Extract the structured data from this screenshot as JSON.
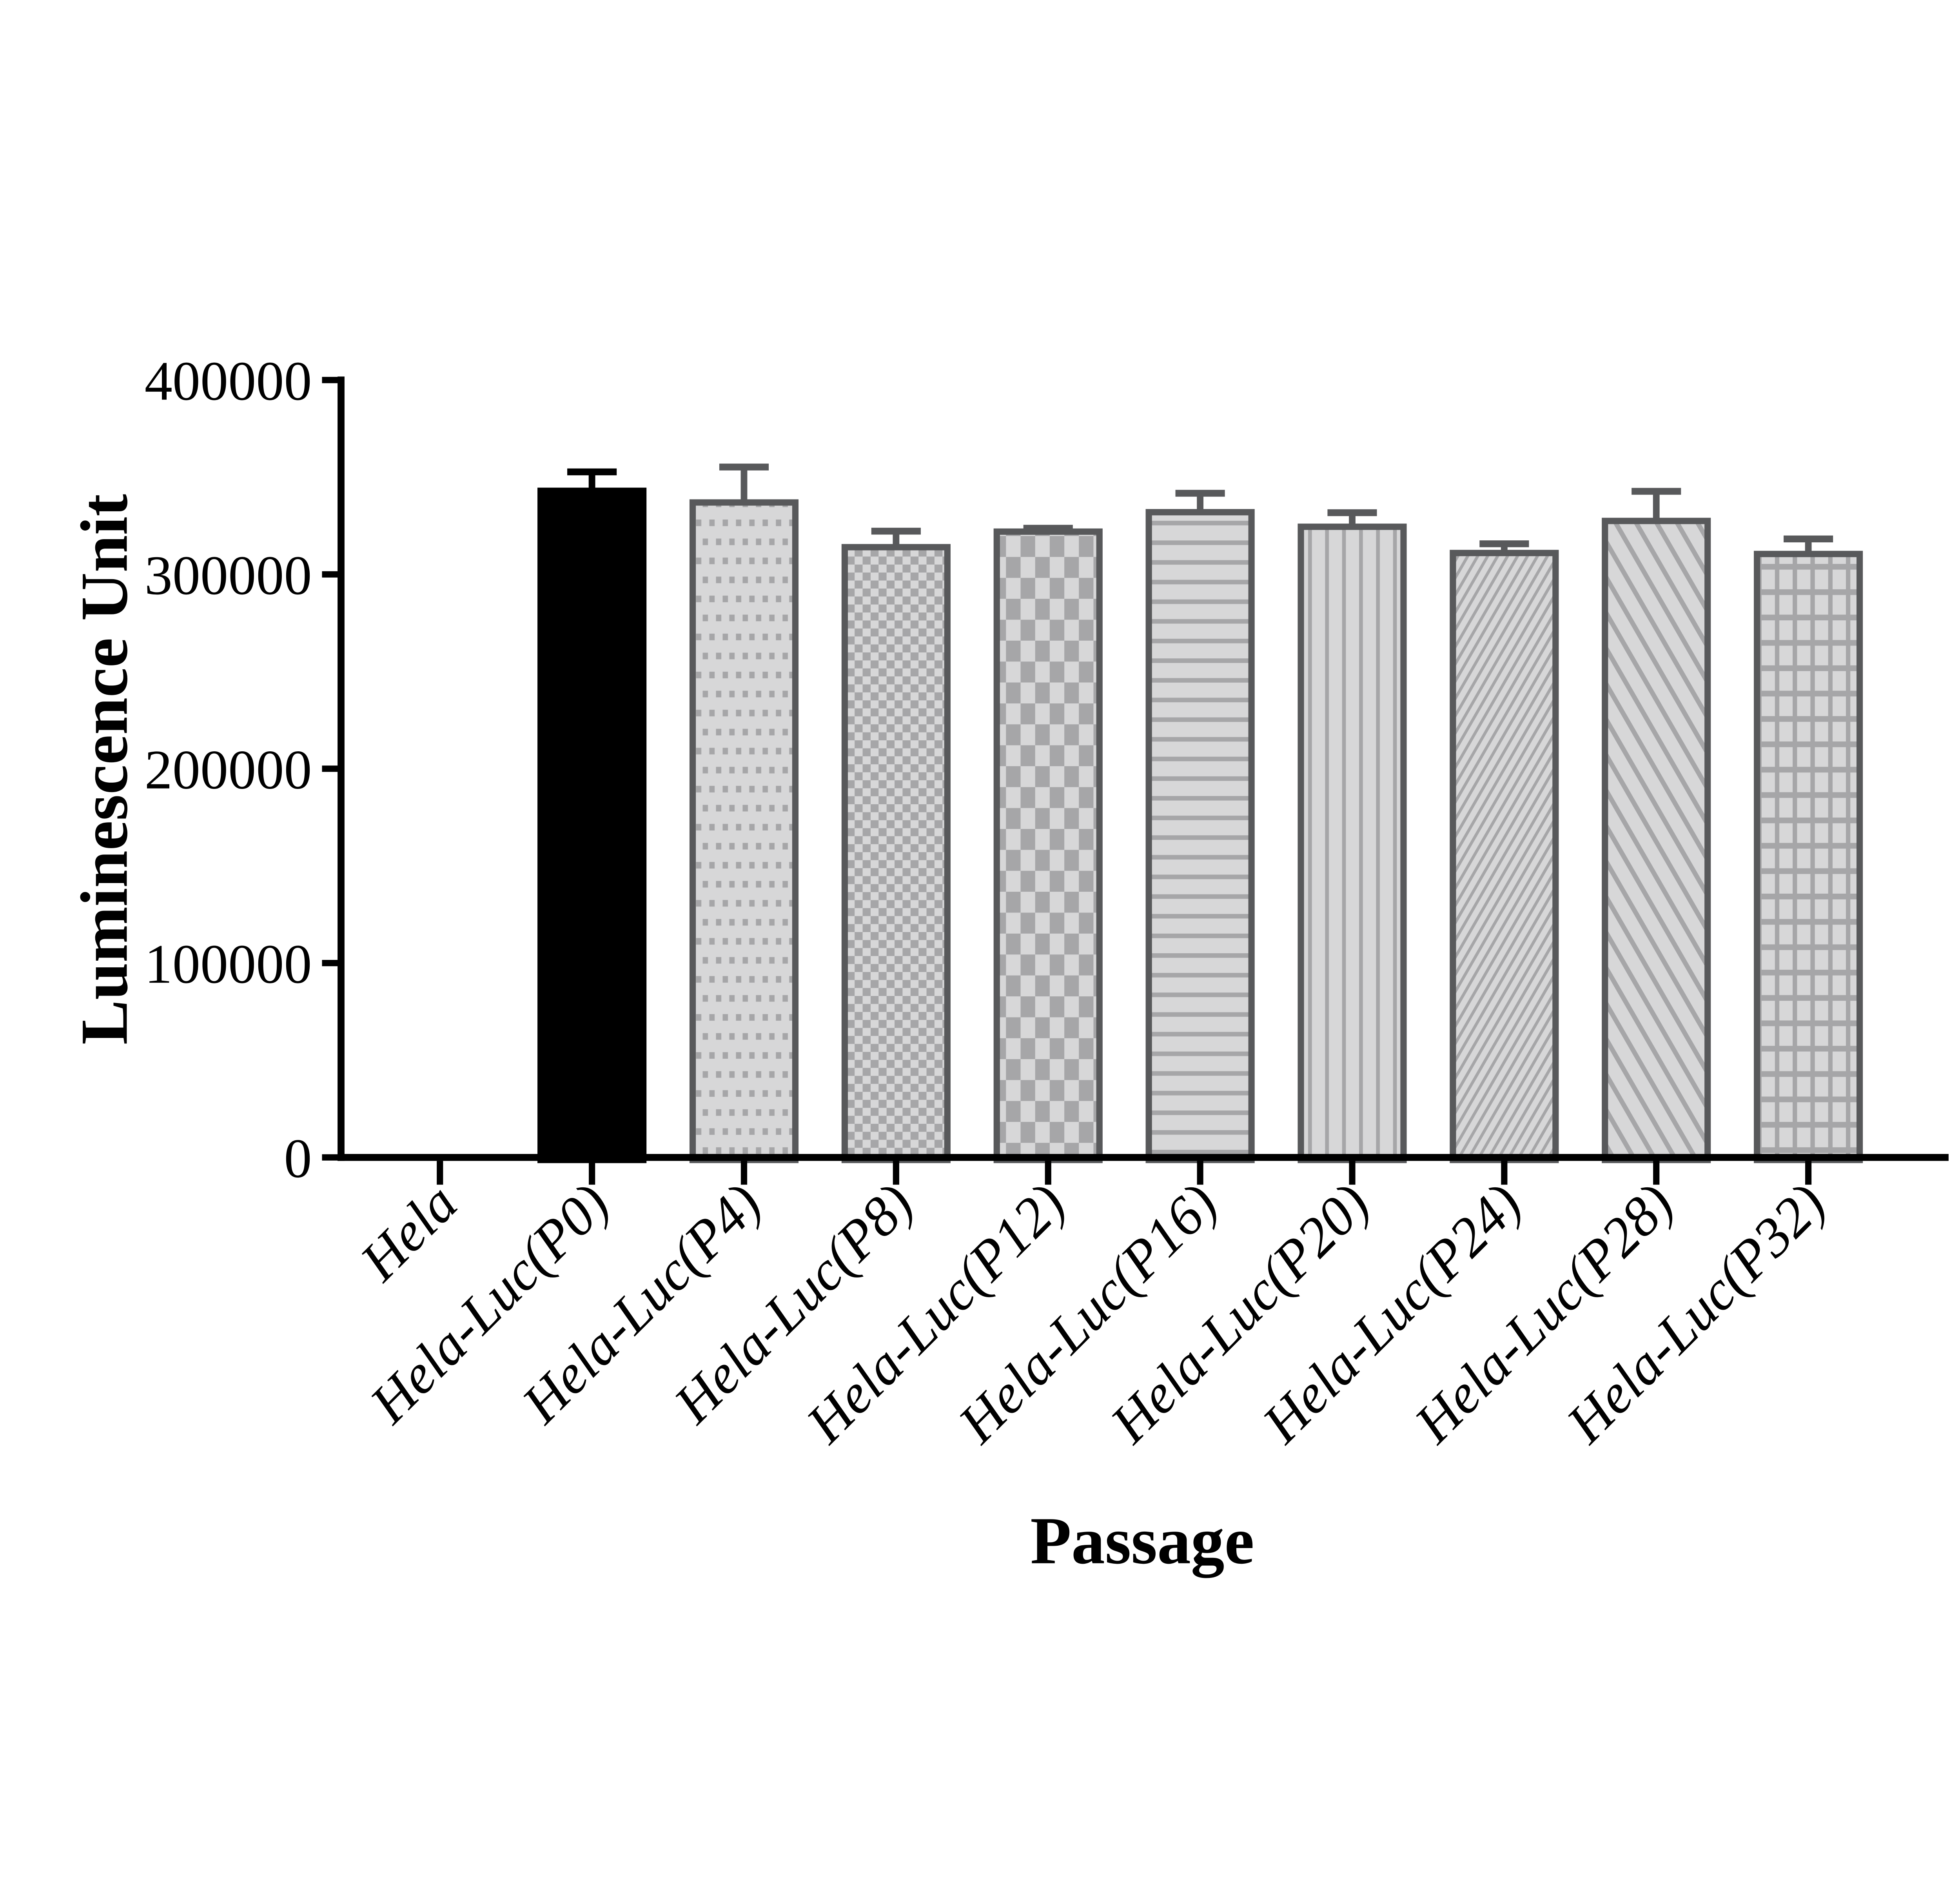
{
  "chart_data": {
    "type": "bar",
    "title": "",
    "xlabel": "Passage",
    "ylabel": "Luminescence Unit",
    "ylim": [
      0,
      400000
    ],
    "yticks": [
      0,
      100000,
      200000,
      300000,
      400000
    ],
    "grid": false,
    "legend": "none",
    "categories": [
      "Hela",
      "Hela-Luc(P0)",
      "Hela-Luc(P4)",
      "Hela-Luc(P8)",
      "Hela-Luc(P12)",
      "Hela-Luc(P16)",
      "Hela-Luc(P20)",
      "Hela-Luc(P24)",
      "Hela-Luc(P28)",
      "Hela-Luc(P32)"
    ],
    "values": [
      0,
      343000,
      337000,
      314000,
      322000,
      332000,
      324500,
      311000,
      327500,
      310500
    ],
    "errors_sd": [
      0,
      11500,
      20000,
      10000,
      3500,
      11500,
      9000,
      6500,
      17000,
      9500
    ],
    "bar_patterns": [
      "none",
      "solid-black",
      "dots",
      "checker-small",
      "checker-large",
      "h-stripes",
      "v-stripes",
      "diagonal-up",
      "diagonal-down",
      "grid"
    ],
    "colors": {
      "axis": "#000000",
      "black": "#000000",
      "border": "#58595b",
      "pattern-fg": "#a6a6a8",
      "pattern-bg": "#d7d7d8"
    }
  }
}
